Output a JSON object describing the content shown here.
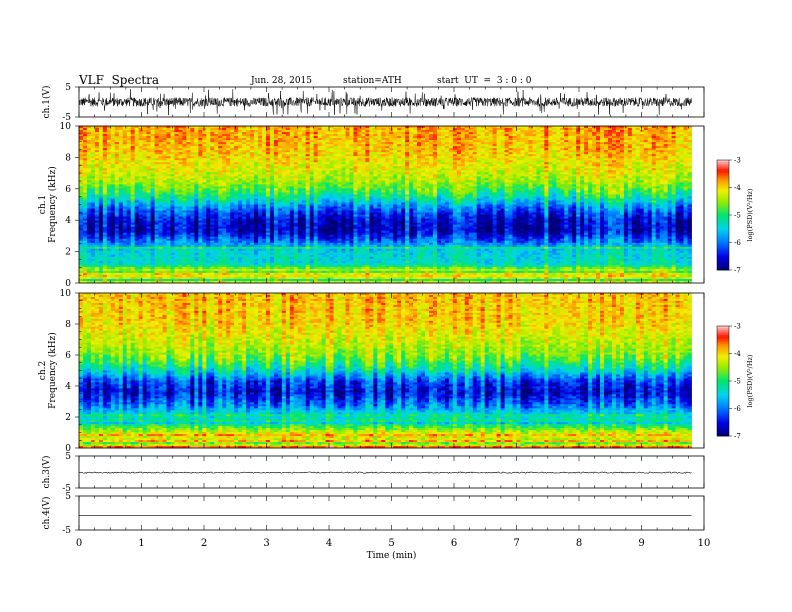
{
  "header": {
    "title": "VLF  Spectra",
    "date": "Jun. 28, 2015",
    "station": "station=ATH",
    "start": "start  UT  =  3 : 0 : 0"
  },
  "chart_data": [
    {
      "type": "line",
      "id": "ch1-waveform",
      "ylabel": "ch.1(V)",
      "ylim": [
        -5,
        5
      ],
      "y_ticks": [
        "5",
        "-5"
      ],
      "xlim": [
        0,
        10
      ],
      "data_end_min": 9.8,
      "series": [
        {
          "y_mean": 0.0,
          "y_noise_range": [
            -1.5,
            1.5
          ],
          "color": "#000000"
        }
      ]
    },
    {
      "type": "heatmap",
      "id": "ch1-spectrogram",
      "ylabel": "ch.1\nFrequency  (kHz)",
      "ylim": [
        0,
        10
      ],
      "y_ticks": [
        "0",
        "2",
        "4",
        "6",
        "8",
        "10"
      ],
      "xlim": [
        0,
        10
      ],
      "data_end_min": 9.8,
      "profile": [
        {
          "f_khz": 0.3,
          "log_psd": -4.2
        },
        {
          "f_khz": 0.7,
          "log_psd": -4.0
        },
        {
          "f_khz": 1.2,
          "log_psd": -5.3
        },
        {
          "f_khz": 2.0,
          "log_psd": -5.4
        },
        {
          "f_khz": 2.6,
          "log_psd": -5.9
        },
        {
          "f_khz": 3.3,
          "log_psd": -6.6
        },
        {
          "f_khz": 4.0,
          "log_psd": -6.5
        },
        {
          "f_khz": 4.6,
          "log_psd": -6.1
        },
        {
          "f_khz": 5.2,
          "log_psd": -5.4
        },
        {
          "f_khz": 5.8,
          "log_psd": -4.8
        },
        {
          "f_khz": 6.5,
          "log_psd": -4.4
        },
        {
          "f_khz": 7.5,
          "log_psd": -4.1
        },
        {
          "f_khz": 8.5,
          "log_psd": -3.9
        },
        {
          "f_khz": 9.5,
          "log_psd": -3.8
        }
      ],
      "colorbar": {
        "label": "log(PSD)(V²/Hz)",
        "range": [
          -7,
          -3
        ],
        "ticks": [
          "-3",
          "-4",
          "-5",
          "-6",
          "-7"
        ]
      }
    },
    {
      "type": "heatmap",
      "id": "ch2-spectrogram",
      "ylabel": "ch.2\nFrequency  (kHz)",
      "ylim": [
        0,
        10
      ],
      "y_ticks": [
        "0",
        "2",
        "4",
        "6",
        "8",
        "10"
      ],
      "xlim": [
        0,
        10
      ],
      "data_end_min": 9.8,
      "profile": [
        {
          "f_khz": 0.3,
          "log_psd": -4.3
        },
        {
          "f_khz": 0.9,
          "log_psd": -4.1
        },
        {
          "f_khz": 1.5,
          "log_psd": -5.0
        },
        {
          "f_khz": 2.2,
          "log_psd": -5.4
        },
        {
          "f_khz": 3.0,
          "log_psd": -6.1
        },
        {
          "f_khz": 3.6,
          "log_psd": -6.5
        },
        {
          "f_khz": 4.3,
          "log_psd": -6.2
        },
        {
          "f_khz": 5.0,
          "log_psd": -5.3
        },
        {
          "f_khz": 5.8,
          "log_psd": -4.6
        },
        {
          "f_khz": 6.8,
          "log_psd": -4.3
        },
        {
          "f_khz": 8.0,
          "log_psd": -4.0
        },
        {
          "f_khz": 9.5,
          "log_psd": -3.9
        }
      ],
      "colorbar": {
        "label": "log(PSD)(V²/Hz)",
        "range": [
          -7,
          -3
        ],
        "ticks": [
          "-3",
          "-4",
          "-5",
          "-6",
          "-7"
        ]
      }
    },
    {
      "type": "line",
      "id": "ch3-waveform",
      "ylabel": "ch.3(V)",
      "ylim": [
        -5,
        5
      ],
      "y_ticks": [
        "5",
        "-5"
      ],
      "xlim": [
        0,
        10
      ],
      "data_end_min": 9.8,
      "series": [
        {
          "y_mean": -0.2,
          "y_noise_range": [
            -0.2,
            0.2
          ],
          "color": "#000000"
        }
      ]
    },
    {
      "type": "line",
      "id": "ch4-waveform",
      "ylabel": "ch.4(V)",
      "ylim": [
        -5,
        5
      ],
      "y_ticks": [
        "5",
        "-5"
      ],
      "xlim": [
        0,
        10
      ],
      "data_end_min": 9.8,
      "xlabel": "Time  (min)",
      "x_ticks": [
        "0",
        "1",
        "2",
        "3",
        "4",
        "5",
        "6",
        "7",
        "8",
        "9",
        "10"
      ],
      "series": [
        {
          "y_mean": -0.7,
          "y_noise_range": [
            0,
            0
          ],
          "color": "#000000"
        }
      ]
    }
  ]
}
